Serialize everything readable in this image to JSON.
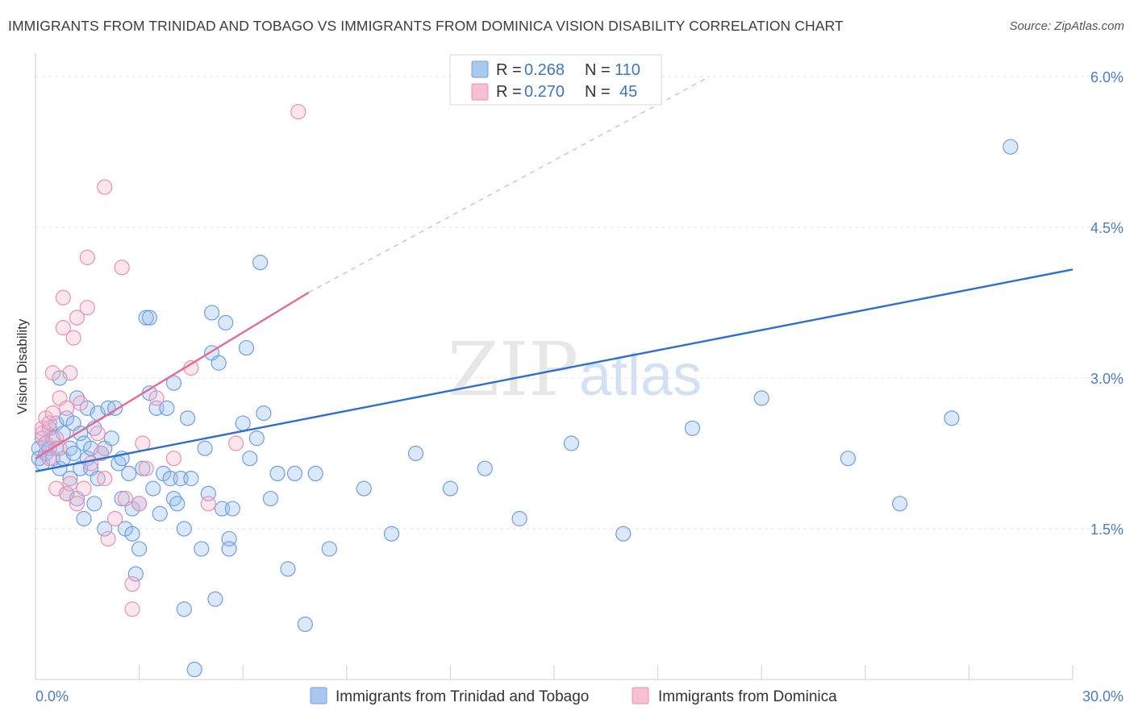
{
  "title": "IMMIGRANTS FROM TRINIDAD AND TOBAGO VS IMMIGRANTS FROM DOMINICA VISION DISABILITY CORRELATION CHART",
  "source": "Source: ZipAtlas.com",
  "watermark": {
    "zip": "ZIP",
    "atlas": "atlas"
  },
  "legend": {
    "r_label": "R =",
    "n_label": "N =",
    "rows": [
      {
        "name": "trinidad",
        "r": "0.268",
        "n": "110",
        "fill": "#aac8f0",
        "stroke": "#6f9fe0"
      },
      {
        "name": "dominica",
        "r": "0.270",
        "n": "45",
        "fill": "#f7bfd2",
        "stroke": "#eb8fb0"
      }
    ]
  },
  "chart_data": {
    "type": "scatter",
    "title": "IMMIGRANTS FROM TRINIDAD AND TOBAGO VS IMMIGRANTS FROM DOMINICA VISION DISABILITY CORRELATION CHART",
    "xlabel": "",
    "ylabel": "Vision Disability",
    "xlim": [
      0,
      30
    ],
    "ylim": [
      0,
      6.2
    ],
    "x_tick_labels": [
      "0.0%",
      "30.0%"
    ],
    "y_ticks": [
      1.5,
      3.0,
      4.5,
      6.0
    ],
    "y_tick_labels": [
      "1.5%",
      "3.0%",
      "4.5%",
      "6.0%"
    ],
    "grid": true,
    "series": [
      {
        "name": "Immigrants from Trinidad and Tobago",
        "color": "#6f9fe0",
        "trend": {
          "x0": 0,
          "y0": 2.07,
          "x1": 30,
          "y1": 4.08
        },
        "points": [
          [
            0.1,
            2.3
          ],
          [
            0.1,
            2.2
          ],
          [
            0.2,
            2.4
          ],
          [
            0.2,
            2.15
          ],
          [
            0.3,
            2.25
          ],
          [
            0.3,
            2.35
          ],
          [
            0.4,
            2.3
          ],
          [
            0.4,
            2.5
          ],
          [
            0.5,
            2.2
          ],
          [
            0.5,
            2.4
          ],
          [
            0.6,
            2.3
          ],
          [
            0.6,
            2.55
          ],
          [
            0.7,
            3.0
          ],
          [
            0.7,
            2.1
          ],
          [
            0.8,
            2.45
          ],
          [
            0.8,
            2.2
          ],
          [
            0.9,
            2.6
          ],
          [
            0.9,
            1.85
          ],
          [
            1.0,
            2.3
          ],
          [
            1.0,
            2.0
          ],
          [
            1.1,
            2.55
          ],
          [
            1.1,
            2.25
          ],
          [
            1.2,
            2.8
          ],
          [
            1.2,
            1.8
          ],
          [
            1.3,
            2.45
          ],
          [
            1.3,
            2.1
          ],
          [
            1.4,
            2.35
          ],
          [
            1.4,
            1.6
          ],
          [
            1.5,
            2.7
          ],
          [
            1.5,
            2.2
          ],
          [
            1.6,
            2.3
          ],
          [
            1.6,
            2.1
          ],
          [
            1.7,
            2.5
          ],
          [
            1.7,
            1.75
          ],
          [
            1.8,
            2.65
          ],
          [
            1.8,
            2.0
          ],
          [
            1.9,
            2.25
          ],
          [
            2.0,
            2.3
          ],
          [
            2.0,
            1.5
          ],
          [
            2.1,
            2.7
          ],
          [
            2.2,
            2.4
          ],
          [
            2.3,
            2.7
          ],
          [
            2.4,
            2.15
          ],
          [
            2.5,
            2.2
          ],
          [
            2.5,
            1.8
          ],
          [
            2.6,
            1.5
          ],
          [
            2.7,
            2.05
          ],
          [
            2.8,
            1.7
          ],
          [
            2.8,
            1.45
          ],
          [
            2.9,
            1.05
          ],
          [
            3.0,
            1.3
          ],
          [
            3.0,
            1.75
          ],
          [
            3.1,
            2.1
          ],
          [
            3.2,
            3.6
          ],
          [
            3.3,
            3.6
          ],
          [
            3.3,
            2.85
          ],
          [
            3.4,
            1.9
          ],
          [
            3.5,
            2.7
          ],
          [
            3.6,
            1.65
          ],
          [
            3.7,
            2.05
          ],
          [
            3.8,
            2.7
          ],
          [
            3.9,
            2.0
          ],
          [
            4.0,
            2.95
          ],
          [
            4.0,
            1.8
          ],
          [
            4.1,
            1.75
          ],
          [
            4.2,
            2.0
          ],
          [
            4.3,
            0.7
          ],
          [
            4.3,
            1.5
          ],
          [
            4.4,
            2.6
          ],
          [
            4.5,
            2.0
          ],
          [
            4.6,
            0.1
          ],
          [
            4.8,
            1.3
          ],
          [
            4.9,
            2.3
          ],
          [
            5.0,
            1.85
          ],
          [
            5.1,
            3.65
          ],
          [
            5.1,
            3.25
          ],
          [
            5.2,
            0.8
          ],
          [
            5.3,
            3.15
          ],
          [
            5.4,
            1.7
          ],
          [
            5.5,
            3.55
          ],
          [
            5.6,
            1.4
          ],
          [
            5.6,
            1.3
          ],
          [
            5.7,
            1.7
          ],
          [
            6.0,
            2.55
          ],
          [
            6.1,
            3.3
          ],
          [
            6.2,
            2.2
          ],
          [
            6.4,
            2.4
          ],
          [
            6.5,
            4.15
          ],
          [
            6.6,
            2.65
          ],
          [
            6.8,
            1.8
          ],
          [
            7.0,
            2.05
          ],
          [
            7.3,
            1.1
          ],
          [
            7.5,
            2.05
          ],
          [
            7.8,
            0.55
          ],
          [
            8.1,
            2.05
          ],
          [
            8.5,
            1.3
          ],
          [
            9.5,
            1.9
          ],
          [
            10.3,
            1.45
          ],
          [
            11.0,
            2.25
          ],
          [
            12.0,
            1.9
          ],
          [
            13.0,
            2.1
          ],
          [
            14.0,
            1.6
          ],
          [
            15.5,
            2.35
          ],
          [
            17.0,
            1.45
          ],
          [
            19.0,
            2.5
          ],
          [
            21.0,
            2.8
          ],
          [
            23.5,
            2.2
          ],
          [
            25.0,
            1.75
          ],
          [
            26.5,
            2.6
          ],
          [
            28.2,
            5.3
          ]
        ]
      },
      {
        "name": "Immigrants from Dominica",
        "color": "#eb8fb0",
        "trend": {
          "x0": 0,
          "y0": 2.2,
          "x1": 7.9,
          "y1": 3.85
        },
        "trend_dashed": {
          "x0": 7.9,
          "y0": 3.85,
          "x1": 19.5,
          "y1": 6.0
        },
        "points": [
          [
            0.2,
            2.5
          ],
          [
            0.2,
            2.45
          ],
          [
            0.3,
            2.6
          ],
          [
            0.3,
            2.35
          ],
          [
            0.4,
            2.55
          ],
          [
            0.4,
            2.2
          ],
          [
            0.5,
            3.05
          ],
          [
            0.5,
            2.65
          ],
          [
            0.6,
            2.4
          ],
          [
            0.6,
            1.9
          ],
          [
            0.7,
            2.8
          ],
          [
            0.7,
            2.3
          ],
          [
            0.8,
            3.8
          ],
          [
            0.8,
            3.5
          ],
          [
            0.9,
            2.7
          ],
          [
            0.9,
            1.85
          ],
          [
            1.0,
            1.95
          ],
          [
            1.0,
            3.05
          ],
          [
            1.1,
            3.4
          ],
          [
            1.2,
            3.6
          ],
          [
            1.2,
            1.75
          ],
          [
            1.3,
            2.75
          ],
          [
            1.4,
            1.9
          ],
          [
            1.5,
            3.7
          ],
          [
            1.5,
            4.2
          ],
          [
            1.6,
            2.15
          ],
          [
            1.8,
            2.45
          ],
          [
            1.9,
            2.25
          ],
          [
            2.0,
            2.0
          ],
          [
            2.0,
            4.9
          ],
          [
            2.1,
            1.4
          ],
          [
            2.3,
            1.6
          ],
          [
            2.5,
            4.1
          ],
          [
            2.6,
            1.8
          ],
          [
            2.8,
            0.7
          ],
          [
            2.8,
            0.95
          ],
          [
            3.0,
            1.75
          ],
          [
            3.1,
            2.35
          ],
          [
            3.2,
            2.1
          ],
          [
            3.5,
            2.8
          ],
          [
            4.0,
            2.2
          ],
          [
            4.5,
            3.1
          ],
          [
            5.0,
            1.75
          ],
          [
            5.8,
            2.35
          ],
          [
            7.6,
            5.65
          ]
        ]
      }
    ]
  }
}
